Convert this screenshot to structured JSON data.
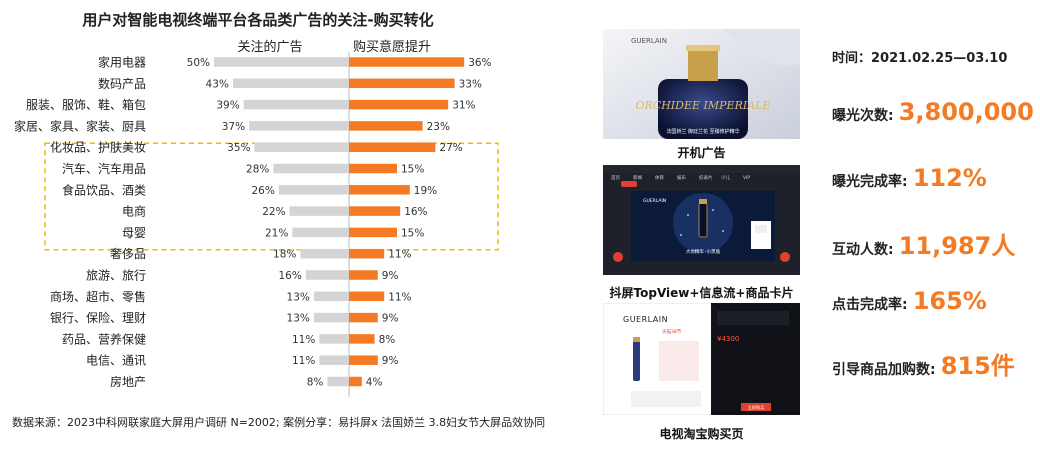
{
  "chart_data": {
    "type": "bar",
    "title": "用户对智能电视终端平台各品类广告的关注-购买转化",
    "series": [
      {
        "name": "关注的广告",
        "values": [
          50,
          43,
          39,
          37,
          35,
          28,
          26,
          22,
          21,
          18,
          16,
          13,
          13,
          11,
          11,
          8
        ]
      },
      {
        "name": "购买意愿提升",
        "values": [
          36,
          33,
          31,
          23,
          27,
          15,
          19,
          16,
          15,
          11,
          9,
          11,
          9,
          8,
          9,
          4
        ]
      }
    ],
    "categories": [
      "家用电器",
      "数码产品",
      "服装、服饰、鞋、箱包",
      "家居、家具、家装、厨具",
      "化妆品、护肤美妆",
      "汽车、汽车用品",
      "食品饮品、酒类",
      "电商",
      "母婴",
      "奢侈品",
      "旅游、旅行",
      "商场、超市、零售",
      "银行、保险、理财",
      "药品、营养保健",
      "电信、通讯",
      "房地产"
    ],
    "value_suffix": "%",
    "highlighted_categories": [
      "化妆品、护肤美妆",
      "汽车、汽车用品",
      "食品饮品、酒类",
      "电商",
      "母婴"
    ],
    "colors": {
      "left": "#d4d4d4",
      "right": "#f47a23",
      "highlight_box": "#f2b900",
      "axis": "#bbbbbb"
    }
  },
  "source": "数据来源：2023中科网联家庭大屏用户调研 N=2002; 案例分享：易抖屏x 法国娇兰 3.8妇女节大屏品效协同",
  "case_images": [
    {
      "caption": "开机广告",
      "brand_text": "GUERLAIN",
      "product_text": "ORCHIDEE IMPERIALE",
      "tagline": "法国娇兰 御廷兰花 至臻修护精华"
    },
    {
      "caption": "抖屏TopView+信息流+商品卡片",
      "brand_text": "GUERLAIN",
      "nav_items": [
        "首页",
        "新闻",
        "体育",
        "娱乐",
        "纪录片",
        "少儿",
        "VIP"
      ],
      "panel_caption": "大地精华 ·小黑瓶"
    },
    {
      "caption": "电视淘宝购买页",
      "brand_text": "GUERLAIN",
      "shop_badge": "天猫38节",
      "price": "¥4300",
      "button_label": "立即购买"
    }
  ],
  "period": "时间：2021.02.25—03.10",
  "stats": [
    {
      "label": "曝光次数:",
      "value": "3,800,000"
    },
    {
      "label": "曝光完成率:",
      "value": "112%"
    },
    {
      "label": "互动人数:",
      "value": "11,987人"
    },
    {
      "label": "点击完成率:",
      "value": "165%"
    },
    {
      "label": "引导商品加购数:",
      "value": "815件"
    }
  ]
}
